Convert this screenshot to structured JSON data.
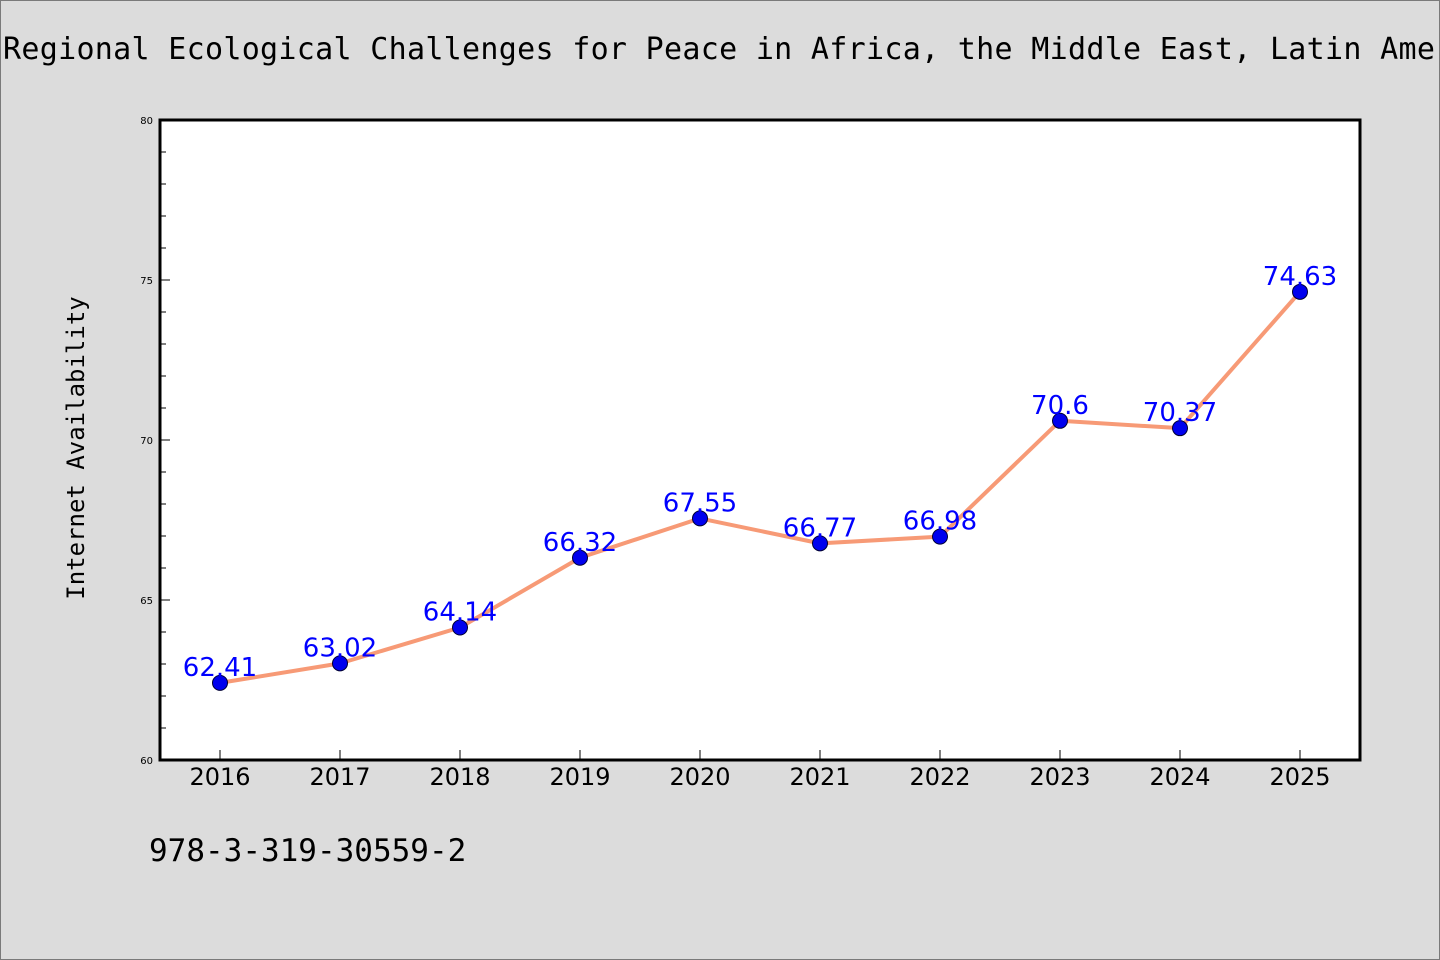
{
  "page": {
    "footer_text": "978-3-319-30559-2"
  },
  "colors": {
    "background": "#dcdcdc",
    "plot_background": "#ffffff",
    "line": "#f79a76",
    "marker": "#0000ee",
    "data_label": "#0000ff"
  },
  "chart_data": {
    "type": "line",
    "title": "Regional Ecological Challenges for Peace in Africa, the Middle East, Latin Ameri",
    "xlabel": "",
    "ylabel": "Internet Availability",
    "categories": [
      "2016",
      "2017",
      "2018",
      "2019",
      "2020",
      "2021",
      "2022",
      "2023",
      "2024",
      "2025"
    ],
    "series": [
      {
        "values": [
          62.41,
          63.02,
          64.14,
          66.32,
          67.55,
          66.77,
          66.98,
          70.6,
          70.37,
          74.63
        ],
        "labels": [
          "62.41",
          "63.02",
          "64.14",
          "66.32",
          "67.55",
          "66.77",
          "66.98",
          "70.6",
          "70.37",
          "74.63"
        ]
      }
    ],
    "ylim": [
      60,
      80
    ],
    "yticks": [
      "60",
      "65",
      "70",
      "75",
      "80"
    ],
    "y_minor_step": 1,
    "grid": false,
    "legend": "none"
  }
}
